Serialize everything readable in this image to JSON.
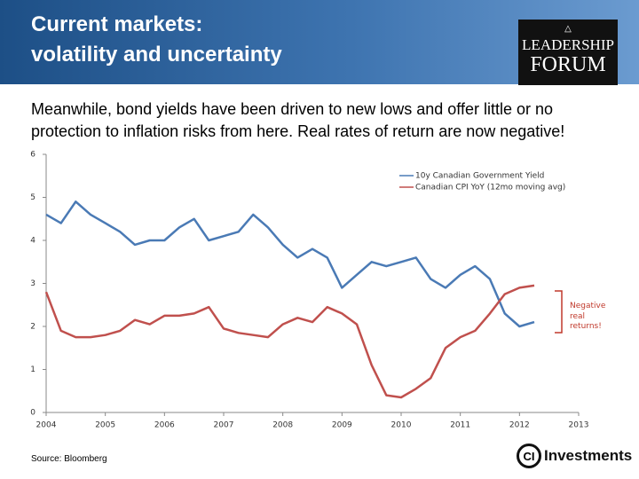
{
  "header": {
    "title": [
      "Current markets:",
      "volatility and uncertainty"
    ],
    "logo": [
      "LEADERSHIP",
      "FORUM"
    ]
  },
  "subtitle": [
    "Meanwhile, bond yields have been driven to new lows and offer little or no",
    "protection to inflation risks from here.  Real rates of return are now negative!"
  ],
  "chart_data": {
    "type": "line",
    "x": [
      2004,
      2004.25,
      2004.5,
      2004.75,
      2005,
      2005.25,
      2005.5,
      2005.75,
      2006,
      2006.25,
      2006.5,
      2006.75,
      2007,
      2007.25,
      2007.5,
      2007.75,
      2008,
      2008.25,
      2008.5,
      2008.75,
      2009,
      2009.25,
      2009.5,
      2009.75,
      2010,
      2010.25,
      2010.5,
      2010.75,
      2011,
      2011.25,
      2011.5,
      2011.75,
      2012,
      2012.25
    ],
    "series": [
      {
        "name": "10y Canadian Government Yield",
        "color": "#4a7ab5",
        "values": [
          4.6,
          4.4,
          4.9,
          4.6,
          4.4,
          4.2,
          3.9,
          4.0,
          4.0,
          4.3,
          4.5,
          4.0,
          4.1,
          4.2,
          4.6,
          4.3,
          3.9,
          3.6,
          3.8,
          3.6,
          2.9,
          3.2,
          3.5,
          3.4,
          3.5,
          3.6,
          3.1,
          2.9,
          3.2,
          3.4,
          3.1,
          2.3,
          2.0,
          2.1
        ]
      },
      {
        "name": "Canadian CPI YoY (12mo moving avg)",
        "color": "#c0504d",
        "values": [
          2.8,
          1.9,
          1.75,
          1.75,
          1.8,
          1.9,
          2.15,
          2.05,
          2.25,
          2.25,
          2.3,
          2.45,
          1.95,
          1.85,
          1.8,
          1.75,
          2.05,
          2.2,
          2.1,
          2.45,
          2.3,
          2.05,
          1.1,
          0.4,
          0.35,
          0.55,
          0.8,
          1.5,
          1.75,
          1.9,
          2.3,
          2.75,
          2.9,
          2.95
        ]
      }
    ],
    "xlim": [
      2004,
      2013
    ],
    "xticks": [
      2004,
      2005,
      2006,
      2007,
      2008,
      2009,
      2010,
      2011,
      2012,
      2013
    ],
    "ylim": [
      0,
      6
    ],
    "yticks": [
      0,
      1,
      2,
      3,
      4,
      5,
      6
    ],
    "legend": "upper right",
    "annotation": "Negative real returns!"
  },
  "source": "Source: Bloomberg",
  "footer_logo": {
    "mark": "CI",
    "text": "Investments"
  }
}
